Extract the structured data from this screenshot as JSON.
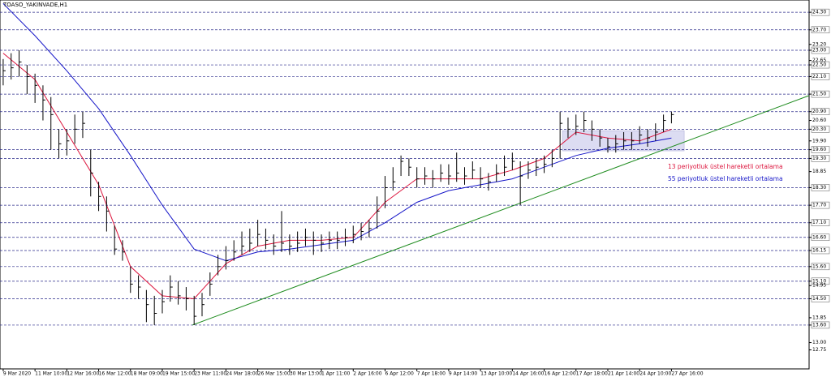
{
  "chart_data": {
    "type": "ohlc",
    "title": "TOASO_YAKINVADE,H1",
    "ohlc": {
      "color": "#000000",
      "close": [
        22.3,
        22.4,
        22.6,
        22.1,
        21.8,
        21.3,
        20.8,
        19.8,
        19.9,
        20.3,
        20.5,
        18.8,
        18.0,
        17.5,
        16.2,
        16.1,
        15.0,
        14.9,
        14.3,
        14.0,
        14.4,
        14.9,
        14.6,
        14.5,
        13.9,
        14.3,
        15.0,
        15.6,
        15.8,
        16.1,
        16.3,
        16.4,
        16.7,
        16.5,
        16.3,
        16.4,
        16.3,
        16.4,
        16.6,
        16.5,
        16.4,
        16.5,
        16.5,
        16.6,
        16.7,
        16.8,
        16.9,
        17.5,
        18.3,
        18.5,
        19.2,
        19.0,
        18.6,
        18.7,
        18.6,
        18.8,
        18.7,
        18.8,
        18.7,
        18.9,
        18.6,
        18.5,
        18.8,
        19.0,
        19.2,
        18.7,
        18.9,
        19.0,
        19.1,
        19.3,
        20.5,
        20.3,
        20.4,
        20.6,
        20.3,
        20.0,
        19.7,
        19.8,
        19.9,
        19.9,
        20.1,
        20.0,
        20.2,
        20.6,
        20.8
      ],
      "high": [
        22.7,
        22.9,
        23.0,
        22.5,
        22.2,
        21.8,
        21.4,
        20.3,
        20.3,
        20.8,
        20.9,
        19.6,
        18.5,
        18.0,
        17.0,
        16.5,
        15.6,
        15.3,
        14.8,
        14.6,
        14.8,
        15.3,
        15.1,
        14.9,
        14.6,
        14.7,
        15.4,
        16.0,
        16.3,
        16.5,
        16.8,
        16.9,
        17.2,
        16.9,
        16.7,
        17.5,
        16.7,
        16.8,
        16.9,
        16.8,
        16.7,
        16.8,
        16.8,
        16.9,
        17.0,
        17.1,
        17.2,
        18.0,
        18.7,
        19.0,
        19.4,
        19.3,
        19.0,
        19.0,
        18.9,
        19.1,
        19.1,
        19.5,
        19.0,
        19.2,
        19.0,
        18.8,
        19.1,
        19.4,
        19.5,
        19.2,
        19.2,
        19.3,
        19.4,
        19.6,
        20.9,
        20.7,
        20.8,
        20.9,
        20.6,
        20.3,
        20.0,
        20.1,
        20.2,
        20.2,
        20.4,
        20.3,
        20.5,
        20.8,
        20.9
      ],
      "low": [
        21.8,
        22.0,
        22.1,
        21.5,
        21.2,
        20.6,
        19.6,
        19.3,
        19.4,
        19.8,
        20.0,
        18.0,
        17.5,
        16.8,
        16.0,
        15.8,
        14.7,
        14.5,
        13.7,
        13.6,
        14.0,
        14.4,
        14.3,
        14.1,
        13.6,
        13.9,
        14.6,
        15.3,
        15.5,
        15.8,
        16.0,
        16.1,
        16.3,
        16.2,
        16.0,
        16.1,
        16.0,
        16.1,
        16.3,
        16.0,
        16.1,
        16.2,
        16.2,
        16.3,
        16.4,
        16.5,
        16.6,
        16.9,
        17.6,
        18.2,
        18.7,
        18.7,
        18.3,
        18.4,
        18.3,
        18.5,
        18.4,
        18.5,
        18.4,
        18.6,
        18.3,
        18.2,
        18.5,
        18.7,
        18.9,
        17.7,
        18.6,
        18.7,
        18.8,
        19.0,
        19.3,
        20.0,
        20.1,
        20.2,
        19.9,
        19.7,
        19.5,
        19.5,
        19.6,
        19.6,
        19.8,
        19.7,
        19.9,
        20.2,
        20.5
      ]
    },
    "series": [
      {
        "name": "13 periyotluk üstel hareketli ortalama",
        "color": "#dc143c",
        "x": [
          0,
          4,
          8,
          12,
          16,
          20,
          24,
          28,
          32,
          36,
          40,
          44,
          48,
          52,
          56,
          60,
          64,
          68,
          72,
          76,
          80,
          84
        ],
        "values": [
          22.9,
          22.0,
          20.2,
          18.4,
          15.6,
          14.6,
          14.5,
          15.7,
          16.3,
          16.5,
          16.5,
          16.6,
          17.8,
          18.6,
          18.6,
          18.6,
          18.9,
          19.3,
          20.2,
          20.0,
          19.9,
          20.3
        ]
      },
      {
        "name": "55 periyotluk üstel hareketli ortalama",
        "color": "#1515c8",
        "x": [
          0,
          4,
          8,
          12,
          16,
          20,
          24,
          28,
          32,
          36,
          40,
          44,
          48,
          52,
          56,
          60,
          64,
          68,
          72,
          76,
          80,
          84
        ],
        "values": [
          24.6,
          23.5,
          22.3,
          21.0,
          19.4,
          17.7,
          16.2,
          15.8,
          16.1,
          16.2,
          16.35,
          16.5,
          17.1,
          17.8,
          18.2,
          18.4,
          18.6,
          19.0,
          19.4,
          19.65,
          19.8,
          20.0
        ]
      }
    ],
    "trendline": {
      "color": "#1f8c1f",
      "x": [
        23.8,
        101.3
      ],
      "values": [
        13.6,
        21.45
      ]
    },
    "zone": {
      "color": "#dcdcf2",
      "x": [
        70.3,
        85.6
      ],
      "values": [
        19.56,
        20.25
      ]
    },
    "levels": [
      24.3,
      23.7,
      23.0,
      22.5,
      22.1,
      21.5,
      20.9,
      20.3,
      19.6,
      19.3,
      18.3,
      17.7,
      17.1,
      16.6,
      16.15,
      15.6,
      15.1,
      14.5,
      13.6
    ],
    "xlim": [
      -0.4,
      101.3
    ],
    "ylim": [
      12.1,
      24.72
    ],
    "yticks": [
      {
        "value": 24.3,
        "label": "24.30"
      },
      {
        "value": 23.7,
        "label": "23.70"
      },
      {
        "value": 23.2,
        "label": "23.20"
      },
      {
        "value": 23.0,
        "label": "23.00"
      },
      {
        "value": 22.65,
        "label": "22.65"
      },
      {
        "value": 22.5,
        "label": "22.50"
      },
      {
        "value": 22.1,
        "label": "22.10"
      },
      {
        "value": 21.5,
        "label": "21.50"
      },
      {
        "value": 20.9,
        "label": "20.90"
      },
      {
        "value": 20.6,
        "label": "20.60"
      },
      {
        "value": 20.3,
        "label": "20.30"
      },
      {
        "value": 19.9,
        "label": "19.90"
      },
      {
        "value": 19.6,
        "label": "19.60"
      },
      {
        "value": 19.3,
        "label": "19.30"
      },
      {
        "value": 18.85,
        "label": "18.85"
      },
      {
        "value": 18.3,
        "label": "18.30"
      },
      {
        "value": 17.7,
        "label": "17.70"
      },
      {
        "value": 17.1,
        "label": "17.10"
      },
      {
        "value": 16.6,
        "label": "16.60"
      },
      {
        "value": 16.15,
        "label": "16.15"
      },
      {
        "value": 15.6,
        "label": "15.60"
      },
      {
        "value": 15.1,
        "label": "15.10"
      },
      {
        "value": 14.95,
        "label": "14.95"
      },
      {
        "value": 14.5,
        "label": "14.50"
      },
      {
        "value": 13.85,
        "label": "13.85"
      },
      {
        "value": 13.6,
        "label": "13.60"
      },
      {
        "value": 13.0,
        "label": "13.00"
      },
      {
        "value": 12.75,
        "label": "12.75"
      }
    ],
    "xticks": [
      {
        "value": 0,
        "label": "9 Mar 2020"
      },
      {
        "value": 4,
        "label": "11 Mar 10:00"
      },
      {
        "value": 8,
        "label": "12 Mar 16:00"
      },
      {
        "value": 12,
        "label": "16 Mar 12:00"
      },
      {
        "value": 16,
        "label": "18 Mar 09:00"
      },
      {
        "value": 20,
        "label": "19 Mar 15:00"
      },
      {
        "value": 24,
        "label": "23 Mar 11:00"
      },
      {
        "value": 28,
        "label": "24 Mar 18:00"
      },
      {
        "value": 32,
        "label": "26 Mar 15:00"
      },
      {
        "value": 36,
        "label": "30 Mar 13:00"
      },
      {
        "value": 40,
        "label": "1 Apr 11:00"
      },
      {
        "value": 44,
        "label": "2 Apr 16:00"
      },
      {
        "value": 48,
        "label": "6 Apr 12:00"
      },
      {
        "value": 52,
        "label": "7 Apr 18:00"
      },
      {
        "value": 56,
        "label": "9 Apr 14:00"
      },
      {
        "value": 60,
        "label": "13 Apr 10:00"
      },
      {
        "value": 64,
        "label": "14 Apr 16:00"
      },
      {
        "value": 68,
        "label": "16 Apr 12:00"
      },
      {
        "value": 72,
        "label": "17 Apr 18:00"
      },
      {
        "value": 76,
        "label": "21 Apr 14:00"
      },
      {
        "value": 80,
        "label": "24 Apr 10:00"
      },
      {
        "value": 84,
        "label": "27 Apr 16:00"
      }
    ]
  }
}
